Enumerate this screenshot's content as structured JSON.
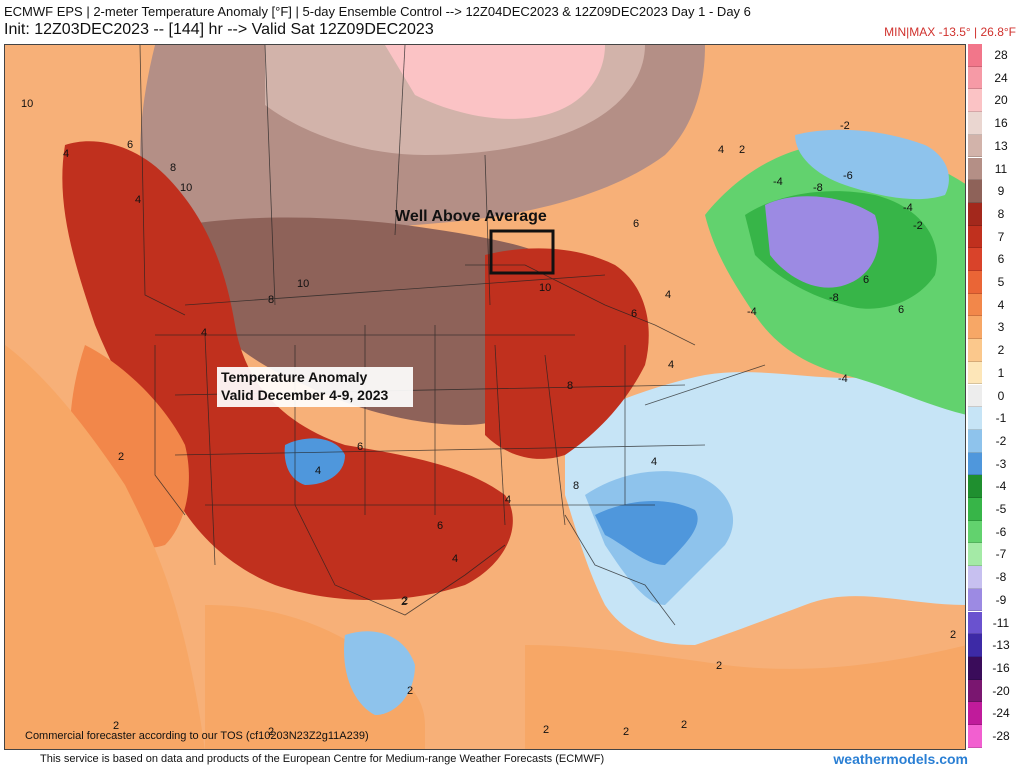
{
  "header": {
    "title_line1": "ECMWF EPS | 2-meter Temperature Anomaly [°F] | 5-day Ensemble Control --> 12Z04DEC2023 & 12Z09DEC2023   Day 1 - Day 6",
    "title_line2": "Init: 12Z03DEC2023 -- [144] hr --> Valid Sat 12Z09DEC2023",
    "minmax": "MIN|MAX -13.5° | 26.8°F"
  },
  "map": {
    "annotation_well_above": "Well Above Average",
    "annotation_anomaly_line1": "Temperature Anomaly",
    "annotation_anomaly_line2": "Valid December 4-9, 2023",
    "disclaimer": "Commercial forecaster according to our TOS (cf10203N23Z2g11A239)",
    "contour_labels": [
      "10",
      "4",
      "6",
      "10",
      "8",
      "4",
      "10",
      "8",
      "4",
      "2",
      "6",
      "4",
      "6",
      "8",
      "6",
      "4",
      "10",
      "6",
      "4",
      "2",
      "2",
      "4",
      "4",
      "8",
      "6",
      "2",
      "-4",
      "-6",
      "-8",
      "-2",
      "-4",
      "-2",
      "-8",
      "-4",
      "6",
      "-4",
      "2",
      "2",
      "2",
      "2",
      "2",
      "2",
      "2",
      "4",
      "4",
      "2"
    ]
  },
  "legend": {
    "items": [
      {
        "label": "28",
        "color": "#f2768a"
      },
      {
        "label": "24",
        "color": "#f69aa6"
      },
      {
        "label": "20",
        "color": "#fbc3c5"
      },
      {
        "label": "16",
        "color": "#ead6d0"
      },
      {
        "label": "13",
        "color": "#d2b3aa"
      },
      {
        "label": "11",
        "color": "#b48f86"
      },
      {
        "label": "9",
        "color": "#8e6259"
      },
      {
        "label": "8",
        "color": "#a3281c"
      },
      {
        "label": "7",
        "color": "#c0301e"
      },
      {
        "label": "6",
        "color": "#d9432a"
      },
      {
        "label": "5",
        "color": "#ea6536"
      },
      {
        "label": "4",
        "color": "#f2874a"
      },
      {
        "label": "3",
        "color": "#f7a766"
      },
      {
        "label": "2",
        "color": "#fbc88c"
      },
      {
        "label": "1",
        "color": "#fde6b8"
      },
      {
        "label": "0",
        "color": "#ededed"
      },
      {
        "label": "-1",
        "color": "#c6e4f6"
      },
      {
        "label": "-2",
        "color": "#8ec3ec"
      },
      {
        "label": "-3",
        "color": "#4f97dc"
      },
      {
        "label": "-4",
        "color": "#1f8f2f"
      },
      {
        "label": "-5",
        "color": "#37b548"
      },
      {
        "label": "-6",
        "color": "#62d26e"
      },
      {
        "label": "-7",
        "color": "#a4eaa6"
      },
      {
        "label": "-8",
        "color": "#c7c0f0"
      },
      {
        "label": "-9",
        "color": "#9c8ae3"
      },
      {
        "label": "-11",
        "color": "#6a52cf"
      },
      {
        "label": "-13",
        "color": "#3d2aa6"
      },
      {
        "label": "-16",
        "color": "#3a0c5a"
      },
      {
        "label": "-20",
        "color": "#7a1670"
      },
      {
        "label": "-24",
        "color": "#c01b9b"
      },
      {
        "label": "-28",
        "color": "#f25fd0"
      }
    ]
  },
  "footer": {
    "source_text": "This service is based on data and products of the European Centre for Medium-range Weather Forecasts (ECMWF)",
    "brand": "weathermodels.com"
  }
}
